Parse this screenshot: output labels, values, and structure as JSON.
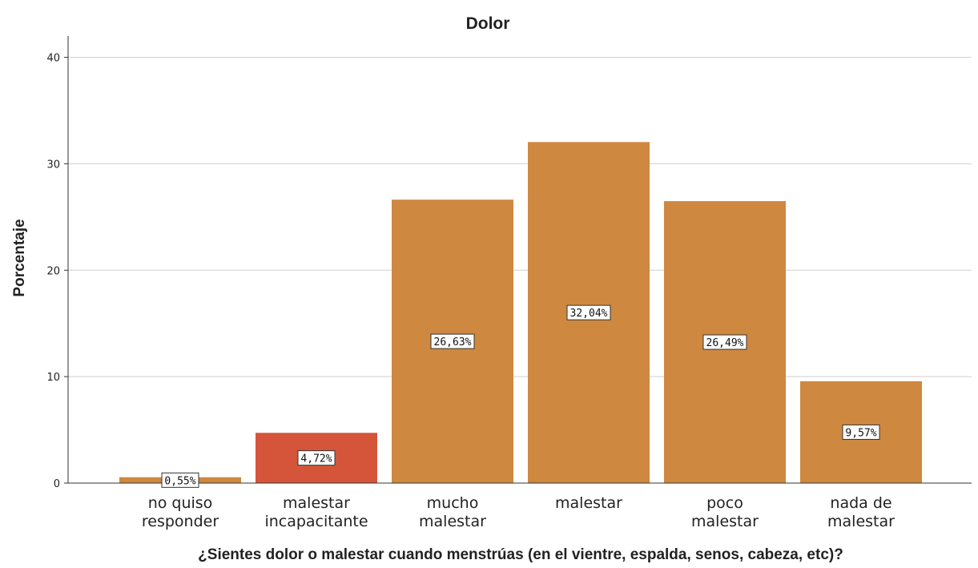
{
  "chart_data": {
    "type": "bar",
    "title": "Dolor",
    "xlabel": "¿Sientes dolor o malestar cuando menstrúas (en el vientre, espalda, senos, cabeza, etc)?",
    "ylabel": "Porcentaje",
    "ylim": [
      0,
      42
    ],
    "yticks": [
      0,
      10,
      20,
      30,
      40
    ],
    "grid": true,
    "categories": [
      [
        "no quiso",
        "responder"
      ],
      [
        "malestar",
        "incapacitante"
      ],
      [
        "mucho",
        "malestar"
      ],
      [
        "malestar"
      ],
      [
        "poco",
        "malestar"
      ],
      [
        "nada de",
        "malestar"
      ]
    ],
    "values": [
      0.55,
      4.72,
      26.63,
      32.04,
      26.49,
      9.57
    ],
    "data_labels": [
      "0,55%",
      "4,72%",
      "26,63%",
      "32,04%",
      "26,49%",
      "9,57%"
    ],
    "colors": [
      "#CE8840",
      "#D4553A",
      "#CE8840",
      "#CE8840",
      "#CE8840",
      "#CE8840"
    ]
  }
}
